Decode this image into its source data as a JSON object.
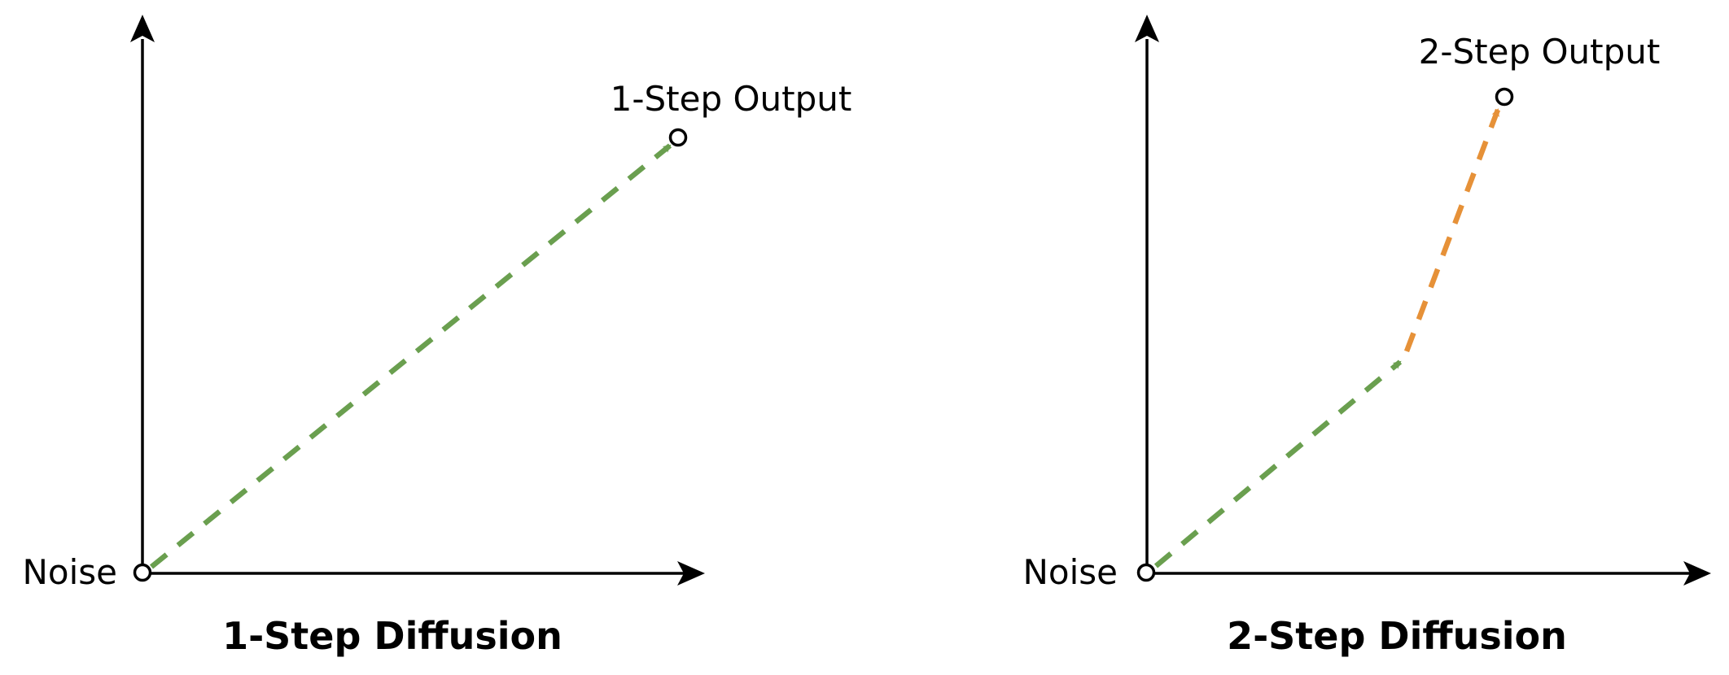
{
  "panels": [
    {
      "caption": "1-Step Diffusion",
      "origin_label": "Noise",
      "output_label": "1-Step Output",
      "arrow_colors": [
        "#6a9f4f"
      ]
    },
    {
      "caption": "2-Step Diffusion",
      "origin_label": "Noise",
      "output_label": "2-Step Output",
      "arrow_colors": [
        "#6a9f4f",
        "#e69138"
      ]
    }
  ],
  "colors": {
    "axis": "#000000",
    "step1_arrow": "#6a9f4f",
    "step2_arrow": "#e69138"
  }
}
